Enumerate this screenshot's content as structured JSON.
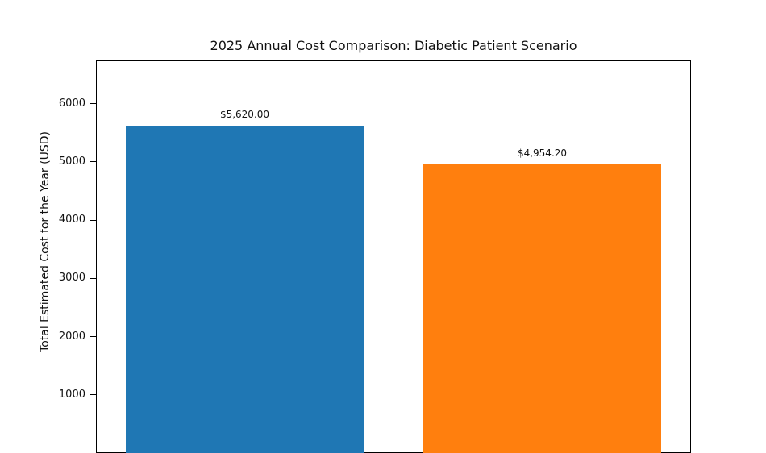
{
  "chart_data": {
    "type": "bar",
    "title": "2025 Annual Cost Comparison: Diabetic Patient Scenario",
    "ylabel": "Total Estimated Cost for the Year (USD)",
    "values": [
      5620.0,
      4954.2
    ],
    "bar_value_labels": [
      "$5,620.00",
      "$4,954.20"
    ],
    "bar_colors": [
      "#1f77b4",
      "#ff7f0e"
    ],
    "yticks": [
      1000,
      2000,
      3000,
      4000,
      5000,
      6000
    ],
    "ylim": [
      0,
      6745
    ],
    "bar_width_fraction": 0.8,
    "grid": false,
    "legend": false
  }
}
